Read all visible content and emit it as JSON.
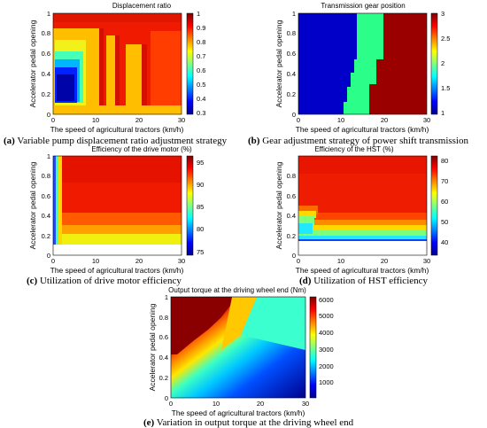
{
  "figure": {
    "x_axis_label": "The speed of agricultural tractors (km/h)",
    "y_axis_label": "Accelerator pedal opening"
  },
  "chart_data": [
    {
      "type": "heatmap",
      "id": "a",
      "title": "Displacement ratio",
      "caption_label": "(a)",
      "caption_text": " Variable pump displacement ratio adjustment strategy",
      "xlabel": "The speed of agricultural tractors (km/h)",
      "ylabel": "Accelerator pedal opening",
      "xlim": [
        0,
        30
      ],
      "ylim": [
        0,
        1
      ],
      "xticks": [
        "0",
        "10",
        "20",
        "30"
      ],
      "yticks": [
        "0",
        "0.2",
        "0.4",
        "0.6",
        "0.8",
        "1"
      ],
      "colorbar": {
        "range": [
          0.3,
          1.0
        ],
        "ticks": [
          "0.3",
          "0.4",
          "0.5",
          "0.6",
          "0.7",
          "0.8",
          "0.9",
          "1"
        ],
        "colormap": "jet"
      }
    },
    {
      "type": "heatmap",
      "id": "b",
      "title": "Transmission gear position",
      "caption_label": "(b)",
      "caption_text": " Gear adjustment strategy of power shift transmission",
      "xlabel": "The speed of agricultural tractors (km/h)",
      "ylabel": "Accelerator pedal opening",
      "xlim": [
        0,
        30
      ],
      "ylim": [
        0,
        1
      ],
      "xticks": [
        "0",
        "10",
        "20",
        "30"
      ],
      "yticks": [
        "0",
        "0.2",
        "0.4",
        "0.6",
        "0.8",
        "1"
      ],
      "colorbar": {
        "range": [
          1,
          3
        ],
        "ticks": [
          "1",
          "1.5",
          "2",
          "2.5",
          "3"
        ],
        "colormap": "jet"
      },
      "regions": [
        {
          "gear": 1,
          "speed_range_kmh": [
            0,
            13.5
          ]
        },
        {
          "gear": 2,
          "speed_range_kmh": [
            13.5,
            20
          ]
        },
        {
          "gear": 3,
          "speed_range_kmh": [
            20,
            30
          ]
        }
      ]
    },
    {
      "type": "heatmap",
      "id": "c",
      "title": "Efficiency of the drive motor (%)",
      "caption_label": "(c)",
      "caption_text": " Utilization of drive motor efficiency",
      "xlabel": "The speed of agricultural tractors (km/h)",
      "ylabel": "Accelerator pedal opening",
      "xlim": [
        0,
        30
      ],
      "ylim": [
        0,
        1
      ],
      "xticks": [
        "0",
        "10",
        "20",
        "30"
      ],
      "yticks": [
        "0",
        "0.2",
        "0.4",
        "0.6",
        "0.8",
        "1"
      ],
      "colorbar": {
        "range": [
          75,
          97
        ],
        "ticks": [
          "75",
          "80",
          "85",
          "90",
          "95"
        ],
        "colormap": "jet"
      }
    },
    {
      "type": "heatmap",
      "id": "d",
      "title": "Efficiency of the HST (%)",
      "caption_label": "(d)",
      "caption_text": " Utilization of HST efficiency",
      "xlabel": "The speed of agricultural tractors (km/h)",
      "ylabel": "Accelerator pedal opening",
      "xlim": [
        0,
        30
      ],
      "ylim": [
        0,
        1
      ],
      "xticks": [
        "0",
        "10",
        "20",
        "30"
      ],
      "yticks": [
        "0",
        "0.2",
        "0.4",
        "0.6",
        "0.8",
        "1"
      ],
      "colorbar": {
        "range": [
          35,
          84
        ],
        "ticks": [
          "40",
          "50",
          "60",
          "70",
          "80"
        ],
        "colormap": "jet"
      }
    },
    {
      "type": "heatmap",
      "id": "e",
      "title": "Output torque at the driving wheel end (Nm)",
      "caption_label": "(e)",
      "caption_text": " Variation in output torque at the driving wheel end",
      "xlabel": "The speed of agricultural tractors (km/h)",
      "ylabel": "Accelerator pedal opening",
      "xlim": [
        0,
        30
      ],
      "ylim": [
        0,
        1
      ],
      "xticks": [
        "0",
        "10",
        "20",
        "30"
      ],
      "yticks": [
        "0",
        "0.2",
        "0.4",
        "0.6",
        "0.8",
        "1"
      ],
      "colorbar": {
        "range": [
          300,
          6200
        ],
        "ticks": [
          "1000",
          "2000",
          "3000",
          "4000",
          "5000",
          "6000"
        ],
        "colormap": "jet"
      }
    }
  ]
}
